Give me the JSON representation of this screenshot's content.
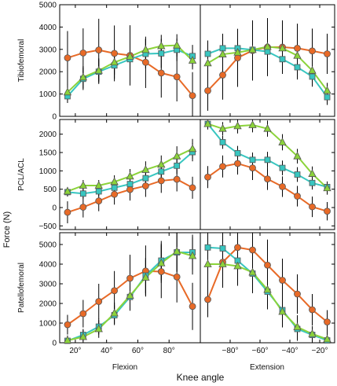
{
  "colors": {
    "series1": "#e86a27",
    "series2": "#38c6c0",
    "series3": "#8bd33a",
    "marker_stroke": "#555555",
    "axis": "#000000"
  },
  "labels": {
    "y_common": "Force (N)",
    "x_common": "Knee angle",
    "flexion": "Flexion",
    "extension": "Extension"
  },
  "chart_data": [
    {
      "type": "line",
      "ylabel": "Tibiofemoral",
      "ylim": [
        0,
        5000
      ],
      "yticks": [
        "0",
        "1000",
        "2000",
        "3000",
        "4000",
        "5000"
      ],
      "markers": {
        "series1": "circle",
        "series2": "square",
        "series3": "triangle"
      },
      "flexion": {
        "x": [
          15,
          25,
          35,
          45,
          55,
          65,
          75,
          85,
          95
        ],
        "xticks": [
          "20°",
          "40°",
          "60°",
          "80°"
        ],
        "series": [
          {
            "values": [
              2620,
              2840,
              2970,
              2820,
              2730,
              2420,
              1940,
              1770,
              930
            ],
            "err": [
              1200,
              1100,
              1400,
              1250,
              1350,
              1150,
              1100,
              1100,
              1050
            ]
          },
          {
            "values": [
              900,
              1680,
              2000,
              2280,
              2560,
              2800,
              2820,
              2980,
              2700
            ],
            "err": [
              300,
              500,
              550,
              600,
              600,
              650,
              650,
              500,
              500
            ]
          },
          {
            "values": [
              1080,
              1750,
              2050,
              2420,
              2680,
              2980,
              3150,
              3180,
              2500
            ],
            "err": [
              350,
              500,
              550,
              550,
              550,
              500,
              500,
              500,
              400
            ]
          }
        ]
      },
      "extension": {
        "x": [
          -95,
          -85,
          -75,
          -65,
          -55,
          -45,
          -35,
          -25,
          -15
        ],
        "xticks": [
          "−80°",
          "−60°",
          "−40°",
          "−20°"
        ],
        "series": [
          {
            "values": [
              1150,
              1850,
              2620,
              2950,
              3100,
              3100,
              3050,
              2930,
              2800
            ],
            "err": [
              900,
              1100,
              1300,
              1350,
              1300,
              1200,
              1100,
              1000,
              900
            ]
          },
          {
            "values": [
              2800,
              3050,
              3050,
              2980,
              2900,
              2560,
              2200,
              1780,
              860
            ],
            "err": [
              600,
              650,
              650,
              650,
              650,
              600,
              550,
              450,
              350
            ]
          },
          {
            "values": [
              2380,
              2780,
              2860,
              2980,
              3120,
              3050,
              2720,
              2050,
              1150
            ],
            "err": [
              500,
              500,
              500,
              550,
              550,
              550,
              500,
              450,
              350
            ]
          }
        ]
      }
    },
    {
      "type": "line",
      "ylabel": "PCL/ACL",
      "ylim": [
        -600,
        2400
      ],
      "yticks": [
        "−500",
        "0",
        "500",
        "1000",
        "1500",
        "2000"
      ],
      "markers": {
        "series1": "circle",
        "series2": "square",
        "series3": "triangle"
      },
      "flexion": {
        "x": [
          15,
          25,
          35,
          45,
          55,
          65,
          75,
          85,
          95
        ],
        "xticks": [
          "20°",
          "40°",
          "60°",
          "80°"
        ],
        "series": [
          {
            "values": [
              -130,
              10,
              180,
              360,
              490,
              590,
              730,
              770,
              540
            ],
            "err": [
              300,
              280,
              280,
              280,
              300,
              300,
              330,
              330,
              300
            ]
          },
          {
            "values": [
              420,
              380,
              440,
              540,
              640,
              800,
              980,
              1140,
              1510
            ],
            "err": [
              120,
              130,
              130,
              150,
              170,
              200,
              220,
              220,
              250
            ]
          },
          {
            "values": [
              440,
              600,
              600,
              700,
              850,
              1030,
              1170,
              1400,
              1600
            ],
            "err": [
              120,
              150,
              150,
              180,
              200,
              230,
              250,
              270,
              270
            ]
          }
        ]
      },
      "extension": {
        "x": [
          -95,
          -85,
          -75,
          -65,
          -55,
          -45,
          -35,
          -25,
          -15
        ],
        "xticks": [
          "−80°",
          "−60°",
          "−40°",
          "−20°"
        ],
        "series": [
          {
            "values": [
              830,
              1120,
              1200,
              1080,
              780,
              570,
              310,
              20,
              -100
            ],
            "err": [
              300,
              300,
              300,
              330,
              300,
              280,
              280,
              280,
              250
            ]
          },
          {
            "values": [
              2280,
              1780,
              1480,
              1300,
              1300,
              1080,
              900,
              670,
              560
            ],
            "err": [
              150,
              180,
              200,
              200,
              220,
              200,
              200,
              180,
              150
            ]
          },
          {
            "values": [
              2280,
              2150,
              2220,
              2250,
              2150,
              1780,
              1400,
              920,
              530
            ],
            "err": [
              150,
              180,
              200,
              200,
              220,
              220,
              200,
              200,
              180
            ]
          }
        ]
      }
    },
    {
      "type": "line",
      "ylabel": "Patellofemoral",
      "ylim": [
        0,
        5600
      ],
      "yticks": [
        "0",
        "1000",
        "2000",
        "3000",
        "4000",
        "5000"
      ],
      "markers": {
        "series1": "circle",
        "series2": "square",
        "series3": "triangle"
      },
      "flexion": {
        "x": [
          15,
          25,
          35,
          45,
          55,
          65,
          75,
          85,
          95
        ],
        "xticks": [
          "20°",
          "40°",
          "60°",
          "80°"
        ],
        "series": [
          {
            "values": [
              920,
              1480,
              2100,
              2650,
              3280,
              3650,
              3620,
              3350,
              1850
            ],
            "err": [
              500,
              700,
              900,
              1000,
              1200,
              1300,
              1350,
              1300,
              1200
            ]
          },
          {
            "values": [
              100,
              400,
              820,
              1400,
              2330,
              3420,
              4180,
              4600,
              4600
            ],
            "err": [
              250,
              300,
              400,
              500,
              700,
              900,
              1000,
              1000,
              900
            ]
          },
          {
            "values": [
              120,
              300,
              700,
              1500,
              2400,
              3320,
              4050,
              4650,
              4420
            ],
            "err": [
              250,
              350,
              450,
              550,
              700,
              900,
              1000,
              1000,
              950
            ]
          }
        ]
      },
      "extension": {
        "x": [
          -95,
          -85,
          -75,
          -65,
          -55,
          -45,
          -35,
          -25,
          -15
        ],
        "xticks": [
          "−80°",
          "−60°",
          "−40°",
          "−20°"
        ],
        "series": [
          {
            "values": [
              2200,
              4100,
              4850,
              4720,
              3950,
              3180,
              2480,
              1680,
              1060
            ],
            "err": [
              900,
              1300,
              1400,
              1400,
              1300,
              1100,
              1000,
              800,
              600
            ]
          },
          {
            "values": [
              4850,
              4800,
              4180,
              3520,
              2600,
              1660,
              700,
              400,
              120
            ],
            "err": [
              900,
              950,
              1000,
              1000,
              900,
              800,
              600,
              400,
              300
            ]
          },
          {
            "values": [
              4000,
              4000,
              3900,
              3580,
              2700,
              1580,
              800,
              450,
              180
            ],
            "err": [
              900,
              950,
              1000,
              1000,
              900,
              800,
              600,
              400,
              300
            ]
          }
        ]
      }
    }
  ]
}
